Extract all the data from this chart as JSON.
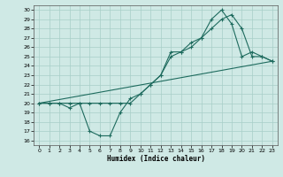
{
  "xlabel": "Humidex (Indice chaleur)",
  "xlim": [
    -0.5,
    23.5
  ],
  "ylim": [
    15.5,
    30.5
  ],
  "xticks": [
    0,
    1,
    2,
    3,
    4,
    5,
    6,
    7,
    8,
    9,
    10,
    11,
    12,
    13,
    14,
    15,
    16,
    17,
    18,
    19,
    20,
    21,
    22,
    23
  ],
  "yticks": [
    16,
    17,
    18,
    19,
    20,
    21,
    22,
    23,
    24,
    25,
    26,
    27,
    28,
    29,
    30
  ],
  "bg_color": "#cfe9e5",
  "grid_color": "#a8cec8",
  "line_color": "#1e6b5e",
  "line1_x": [
    0,
    1,
    2,
    3,
    4,
    5,
    6,
    7,
    8,
    9,
    10,
    11,
    12,
    13,
    14,
    15,
    16,
    17,
    18,
    19,
    20,
    21,
    22,
    23
  ],
  "line1_y": [
    20,
    20,
    20,
    20,
    20,
    17,
    16.5,
    16.5,
    19,
    20.5,
    21,
    22,
    23,
    25.5,
    25.5,
    26,
    27,
    29,
    30,
    28.5,
    25,
    25.5,
    25,
    24.5
  ],
  "line2_x": [
    0,
    1,
    2,
    3,
    4,
    5,
    6,
    7,
    8,
    9,
    10,
    11,
    12,
    13,
    14,
    15,
    16,
    17,
    18,
    19,
    20,
    21,
    22,
    23
  ],
  "line2_y": [
    20,
    20,
    20,
    19.5,
    20,
    20,
    20,
    20,
    20,
    20,
    21,
    22,
    23,
    25,
    25.5,
    26.5,
    27,
    28,
    29,
    29.5,
    28,
    25,
    25,
    24.5
  ],
  "line3_x": [
    0,
    23
  ],
  "line3_y": [
    20,
    24.5
  ]
}
